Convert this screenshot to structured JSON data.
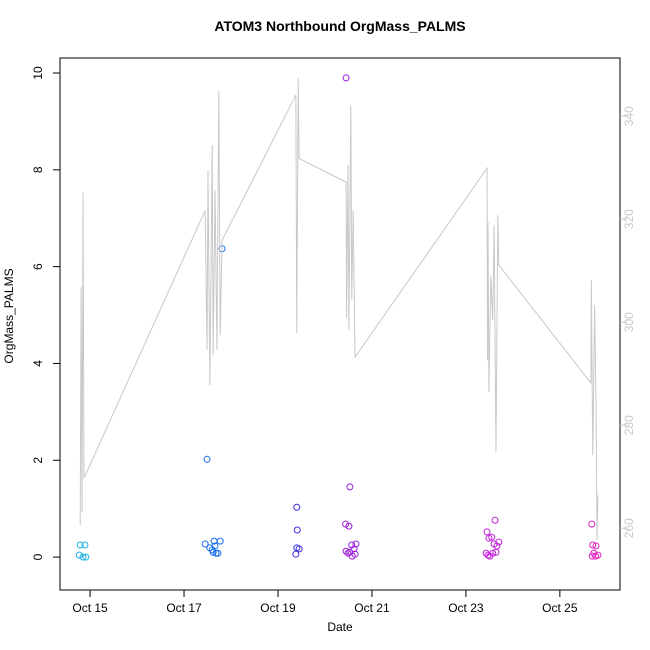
{
  "chart_data": {
    "type": "scatter",
    "title": "ATOM3 Northbound OrgMass_PALMS",
    "xlabel": "Date",
    "ylabel": "OrgMass_PALMS",
    "xlim": [
      14.36,
      26.28
    ],
    "ylim": [
      -0.68,
      10.31
    ],
    "y2lim": [
      248,
      351.3
    ],
    "xticks": [
      {
        "value": 15,
        "label": "Oct 15"
      },
      {
        "value": 17,
        "label": "Oct 17"
      },
      {
        "value": 19,
        "label": "Oct 19"
      },
      {
        "value": 21,
        "label": "Oct 21"
      },
      {
        "value": 23,
        "label": "Oct 23"
      },
      {
        "value": 25,
        "label": "Oct 25"
      }
    ],
    "yticks": [
      0,
      2,
      4,
      6,
      8,
      10
    ],
    "y2ticks": [
      260,
      280,
      300,
      320,
      340
    ],
    "y2_color": "#c8c8c8",
    "series": [
      {
        "color": "#1fb4e8",
        "x": [
          14.79,
          14.89,
          14.77,
          14.85,
          14.91
        ],
        "values": [
          0.25,
          0.25,
          0.04,
          0,
          0
        ]
      },
      {
        "color": "#1a6ef0",
        "x": [
          17.49,
          17.81,
          17.45,
          17.55,
          17.62,
          17.66,
          17.72,
          17.64,
          17.77,
          17.68,
          17.6
        ],
        "values": [
          2.02,
          6.37,
          0.27,
          0.19,
          0.1,
          0.23,
          0.08,
          0.33,
          0.33,
          0.08,
          0.15
        ]
      },
      {
        "color": "#3a2ee0",
        "x": [
          19.4,
          19.41,
          19.4,
          19.45,
          19.38
        ],
        "values": [
          1.03,
          0.56,
          0.19,
          0.17,
          0.06
        ]
      },
      {
        "color": "#9a20d8",
        "x": [
          20.45,
          20.53,
          20.44,
          20.51,
          20.45,
          20.53,
          20.57,
          20.62,
          20.66,
          20.58,
          20.49,
          20.64
        ],
        "values": [
          9.9,
          1.45,
          0.68,
          0.64,
          0.12,
          0.1,
          0.25,
          0.17,
          0.27,
          0.02,
          0.08,
          0.06
        ]
      },
      {
        "color": "#c020d8",
        "x": [
          23.62,
          23.45,
          23.49,
          23.55,
          23.6,
          23.66,
          23.7,
          23.47,
          23.51,
          23.57,
          23.64,
          23.43
        ],
        "values": [
          0.76,
          0.52,
          0.39,
          0.41,
          0.27,
          0.23,
          0.31,
          0.04,
          0.02,
          0.08,
          0.1,
          0.08
        ]
      },
      {
        "color": "#e020c0",
        "x": [
          25.68,
          25.7,
          25.77,
          25.72,
          25.81,
          25.69,
          25.76
        ],
        "values": [
          0.68,
          0.25,
          0.23,
          0.08,
          0.04,
          0.02,
          0.02
        ]
      },
      {
        "type": "line",
        "axis": "y2",
        "color": "#c8c8c8",
        "x": [
          14.79,
          14.81,
          14.83,
          14.85,
          14.87,
          17.45,
          17.49,
          17.51,
          17.55,
          17.6,
          17.62,
          17.66,
          17.7,
          17.74,
          17.77,
          17.81,
          19.38,
          19.4,
          19.43,
          19.45,
          20.45,
          20.46,
          20.49,
          20.51,
          20.55,
          20.57,
          20.6,
          20.64,
          23.45,
          23.46,
          23.47,
          23.49,
          23.53,
          23.57,
          23.6,
          23.64,
          23.68,
          23.7,
          25.66,
          25.67,
          25.7,
          25.74,
          25.77,
          25.79,
          25.81
        ],
        "values": [
          260.6,
          306.8,
          263.1,
          325.2,
          269.7,
          321.7,
          294.6,
          329.5,
          287.8,
          334.4,
          293.6,
          325.6,
          294.6,
          345.0,
          297.5,
          315.9,
          344.1,
          297.9,
          347.4,
          331.8,
          327.2,
          300.8,
          330.5,
          298.4,
          342.1,
          304.3,
          321.7,
          293.2,
          329.9,
          292.6,
          319.4,
          286.4,
          309.1,
          300.4,
          318.8,
          274.8,
          320.8,
          311.1,
          288.2,
          308.2,
          274.2,
          303.3,
          283.9,
          257.7,
          266.4
        ]
      }
    ]
  }
}
